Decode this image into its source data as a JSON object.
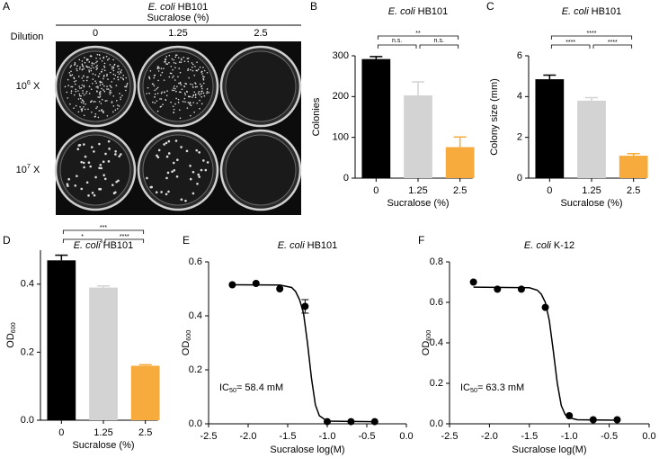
{
  "image_panel": {
    "panel_label": "A",
    "title": {
      "italic": "E. coli",
      "text": "HB101"
    },
    "column_title": "Sucralose (%)",
    "columns": [
      "0",
      "1.25",
      "2.5"
    ],
    "row_title": "Dilution",
    "rows": [
      {
        "text": "10",
        "sup": "6",
        "after": " X"
      },
      {
        "text": "10",
        "sup": "7",
        "after": " X"
      }
    ]
  },
  "chart_data": [
    {
      "panel_label": "B",
      "type": "bar",
      "title": {
        "italic": "E. coli",
        "text": "HB101"
      },
      "categories": [
        "0",
        "1.25",
        "2.5"
      ],
      "values": [
        292,
        203,
        76
      ],
      "errors": [
        6,
        33,
        25
      ],
      "colors": [
        "#000000",
        "#d3d3d3",
        "#f6ab3c"
      ],
      "ylim": [
        0,
        300
      ],
      "yticks": [
        0,
        100,
        200,
        300
      ],
      "xlabel": "Sucralose (%)",
      "ylabel": {
        "text": "Colonies"
      },
      "significance": [
        {
          "from": "0",
          "to": "1.25",
          "label": "n.s."
        },
        {
          "from": "1.25",
          "to": "2.5",
          "label": "n.s."
        },
        {
          "from": "0",
          "to": "2.5",
          "label": "**"
        }
      ]
    },
    {
      "panel_label": "C",
      "type": "bar",
      "title": {
        "italic": "E. coli",
        "text": "HB101"
      },
      "categories": [
        "0",
        "1.25",
        "2.5"
      ],
      "values": [
        4.85,
        3.8,
        1.1
      ],
      "errors": [
        0.2,
        0.15,
        0.1
      ],
      "colors": [
        "#000000",
        "#d3d3d3",
        "#f6ab3c"
      ],
      "ylim": [
        0,
        6
      ],
      "yticks": [
        0,
        2,
        4,
        6
      ],
      "xlabel": "Sucralose (%)",
      "ylabel": {
        "text": "Colony size (mm)"
      },
      "significance": [
        {
          "from": "0",
          "to": "1.25",
          "label": "****"
        },
        {
          "from": "1.25",
          "to": "2.5",
          "label": "****"
        },
        {
          "from": "0",
          "to": "2.5",
          "label": "****"
        }
      ]
    },
    {
      "panel_label": "D",
      "type": "bar",
      "title": {
        "italic": "E. coli",
        "text": "HB101"
      },
      "categories": [
        "0",
        "1.25",
        "2.5"
      ],
      "values": [
        0.47,
        0.39,
        0.16
      ],
      "errors": [
        0.015,
        0.005,
        0.003
      ],
      "colors": [
        "#000000",
        "#d3d3d3",
        "#f6ab3c"
      ],
      "ylim": [
        0,
        0.5
      ],
      "yticks": [
        {
          "value": 0,
          "label": "0.0"
        },
        0.2,
        0.4
      ],
      "xlabel": "Sucralose (%)",
      "ylabel": {
        "text": "OD",
        "sub": "600"
      },
      "significance": [
        {
          "from": "0",
          "to": "1.25",
          "label": "*"
        },
        {
          "from": "1.25",
          "to": "2.5",
          "label": "****"
        },
        {
          "from": "0",
          "to": "2.5",
          "label": "***"
        }
      ]
    },
    {
      "panel_label": "E",
      "type": "line",
      "title": {
        "italic": "E. coli",
        "text": "HB101"
      },
      "xlabel": "Sucralose log(M)",
      "ylabel": {
        "text": "OD",
        "sub": "600"
      },
      "xlim": [
        -2.5,
        0
      ],
      "xticks": [
        -2.5,
        {
          "value": -2,
          "label": "-2.0"
        },
        -1.5,
        {
          "value": -1,
          "label": "-1.0"
        },
        -0.5,
        {
          "value": 0,
          "label": "0.0"
        }
      ],
      "ylim": [
        0,
        0.6
      ],
      "yticks": [
        {
          "value": 0,
          "label": "0.0"
        },
        0.2,
        0.4,
        0.6
      ],
      "annotation": {
        "text": "IC",
        "sub": "50",
        "after": "= 58.4 mM"
      },
      "series": [
        {
          "color": "#000000",
          "markers": true,
          "x": [
            -2.2,
            -1.9,
            -1.6,
            -1.28,
            -1.0,
            -0.7,
            -0.4
          ],
          "values": [
            0.515,
            0.52,
            0.5,
            0.435,
            0.008,
            0.008,
            0.008
          ],
          "errors": [
            null,
            null,
            null,
            0.025,
            null,
            null,
            null
          ]
        },
        {
          "color": "#000000",
          "markers": false,
          "x": [
            -2.2,
            -1.6,
            -1.45,
            -1.4,
            -1.35,
            -1.3,
            -1.25,
            -1.2,
            -1.15,
            -1.1,
            -1.0,
            -0.4
          ],
          "values": [
            0.515,
            0.514,
            0.505,
            0.49,
            0.46,
            0.41,
            0.3,
            0.17,
            0.07,
            0.03,
            0.01,
            0.008
          ]
        }
      ]
    },
    {
      "panel_label": "F",
      "type": "line",
      "title": {
        "italic": "E. coli",
        "text": "K-12"
      },
      "xlabel": "Sucralose log(M)",
      "ylabel": {
        "text": "OD",
        "sub": "600"
      },
      "xlim": [
        -2.5,
        0
      ],
      "xticks": [
        -2.5,
        {
          "value": -2,
          "label": "-2.0"
        },
        -1.5,
        {
          "value": -1,
          "label": "-1.0"
        },
        -0.5,
        {
          "value": 0,
          "label": "0.0"
        }
      ],
      "ylim": [
        0,
        0.8
      ],
      "yticks": [
        {
          "value": 0,
          "label": "0.0"
        },
        0.2,
        0.4,
        0.6,
        0.8
      ],
      "annotation": {
        "text": "IC",
        "sub": "50",
        "after": "= 63.3 mM"
      },
      "series": [
        {
          "color": "#000000",
          "markers": true,
          "x": [
            -2.2,
            -1.9,
            -1.6,
            -1.3,
            -1.0,
            -0.7,
            -0.4
          ],
          "values": [
            0.7,
            0.665,
            0.665,
            0.575,
            0.04,
            0.02,
            0.02
          ]
        },
        {
          "color": "#000000",
          "markers": false,
          "x": [
            -2.2,
            -1.5,
            -1.4,
            -1.35,
            -1.3,
            -1.25,
            -1.2,
            -1.15,
            -1.1,
            -1.05,
            -1.0,
            -0.9,
            -0.4
          ],
          "values": [
            0.675,
            0.672,
            0.66,
            0.64,
            0.6,
            0.51,
            0.36,
            0.2,
            0.09,
            0.045,
            0.03,
            0.02,
            0.018
          ]
        }
      ]
    }
  ]
}
